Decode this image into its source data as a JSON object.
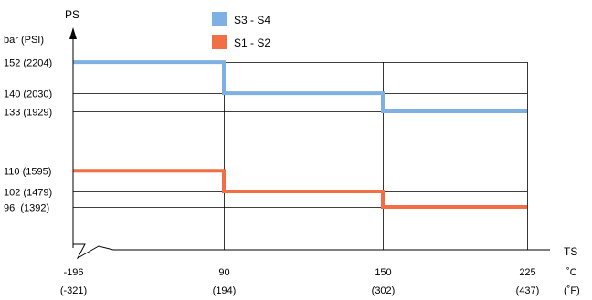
{
  "chart_data": {
    "type": "line",
    "title": "",
    "ylabel": "PS",
    "yunit": "bar (PSI)",
    "xlabel": "TS",
    "xunit_primary": "˚C",
    "xunit_secondary": "(˚F)",
    "x_ticks": [
      {
        "value": -196,
        "label": "-196",
        "sublabel": "(-321)"
      },
      {
        "value": 90,
        "label": "90",
        "sublabel": "(194)"
      },
      {
        "value": 150,
        "label": "150",
        "sublabel": "(302)"
      },
      {
        "value": 225,
        "label": "225",
        "sublabel": "(437)"
      }
    ],
    "y_ticks": [
      {
        "value": 152,
        "label": "152 (2204)"
      },
      {
        "value": 140,
        "label": "140 (2030)"
      },
      {
        "value": 133,
        "label": "133 (1929)"
      },
      {
        "value": 110,
        "label": "110 (1595)"
      },
      {
        "value": 102,
        "label": "102 (1479)"
      },
      {
        "value": 96,
        "label": "96  (1392)"
      }
    ],
    "series": [
      {
        "name": "S3 - S4",
        "color": "#7eb0e3",
        "steps": [
          {
            "x_start": -196,
            "x_end": 90,
            "y": 152
          },
          {
            "x_start": 90,
            "x_end": 150,
            "y": 140
          },
          {
            "x_start": 150,
            "x_end": 225,
            "y": 133
          }
        ]
      },
      {
        "name": "S1 - S2",
        "color": "#f26e45",
        "steps": [
          {
            "x_start": -196,
            "x_end": 90,
            "y": 110
          },
          {
            "x_start": 90,
            "x_end": 150,
            "y": 102
          },
          {
            "x_start": 150,
            "x_end": 225,
            "y": 96
          }
        ]
      }
    ],
    "legend_position": "top-center",
    "grid": true,
    "axis_break": true
  }
}
